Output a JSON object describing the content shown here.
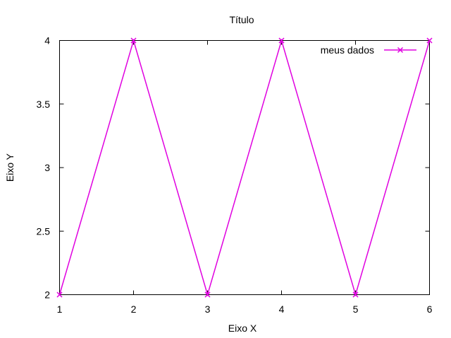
{
  "colors": {
    "series": "#e000e0",
    "axis": "#000000",
    "background": "#ffffff"
  },
  "chart_data": {
    "type": "line",
    "title": "Título",
    "xlabel": "Eixo X",
    "ylabel": "Eixo Y",
    "xlim": [
      1,
      6
    ],
    "ylim": [
      2,
      4
    ],
    "xticks": [
      "1",
      "2",
      "3",
      "4",
      "5",
      "6"
    ],
    "yticks": [
      "2",
      "2.5",
      "3",
      "3.5",
      "4"
    ],
    "grid": false,
    "legend_position": "top-right",
    "series": [
      {
        "name": "meus dados",
        "marker": "x",
        "x": [
          1,
          2,
          3,
          4,
          5,
          6
        ],
        "y": [
          2,
          4,
          2,
          4,
          2,
          4
        ]
      }
    ]
  }
}
